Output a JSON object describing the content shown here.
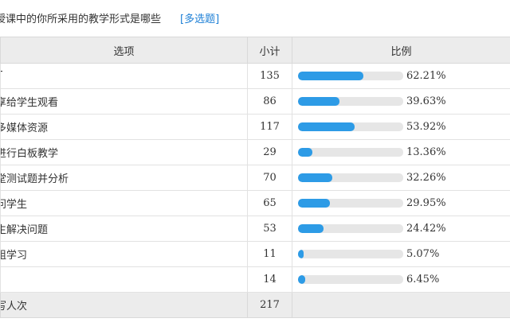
{
  "question": {
    "text": "授课中的你所采用的教学形式是哪些",
    "tag": "[多选题]"
  },
  "table": {
    "headers": {
      "option": "选项",
      "count": "小计",
      "ratio": "比例"
    },
    "rows": [
      {
        "option": "T",
        "count": "135",
        "percent_text": "62.21%",
        "percent": 62.21
      },
      {
        "option": "享给学生观看",
        "count": "86",
        "percent_text": "39.63%",
        "percent": 39.63
      },
      {
        "option": "多媒体资源",
        "count": "117",
        "percent_text": "53.92%",
        "percent": 53.92
      },
      {
        "option": "进行白板教学",
        "count": "29",
        "percent_text": "13.36%",
        "percent": 13.36
      },
      {
        "option": "堂测试题并分析",
        "count": "70",
        "percent_text": "32.26%",
        "percent": 32.26
      },
      {
        "option": "问学生",
        "count": "65",
        "percent_text": "29.95%",
        "percent": 29.95
      },
      {
        "option": "生解决问题",
        "count": "53",
        "percent_text": "24.42%",
        "percent": 24.42
      },
      {
        "option": "组学习",
        "count": "11",
        "percent_text": "5.07%",
        "percent": 5.07
      },
      {
        "option": "",
        "count": "14",
        "percent_text": "6.45%",
        "percent": 6.45
      }
    ],
    "total": {
      "label": "写人次",
      "count": "217"
    }
  },
  "colors": {
    "bar_fill": "#2d9be6",
    "bar_track": "#e6e6e6",
    "tag_link": "#1c7fd6",
    "header_bg": "#ececec"
  }
}
